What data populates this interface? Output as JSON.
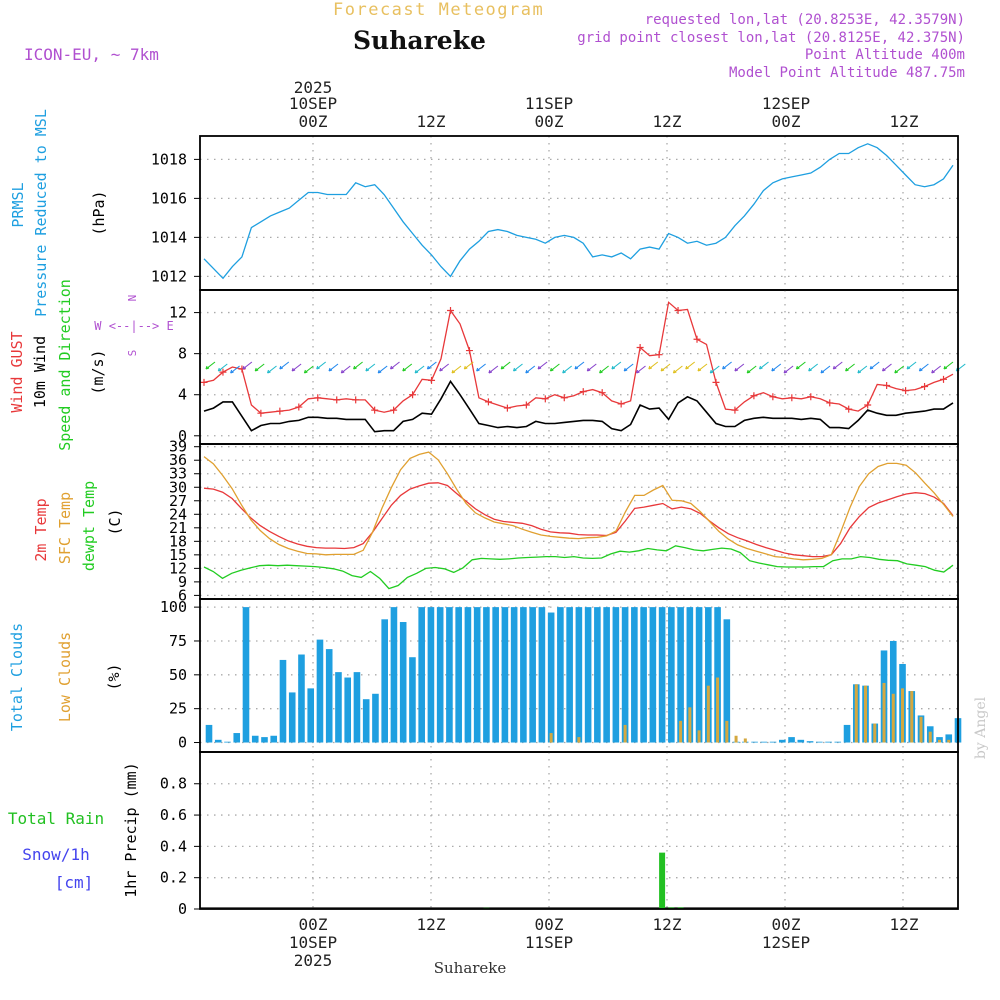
{
  "header": {
    "title": "Forecast Meteogram",
    "location": "Suhareke",
    "model": "ICON-EU, ~ 7km",
    "requested": "requested lon,lat (20.8253E, 42.3579N)",
    "gridpoint": "grid point closest lon,lat (20.8125E, 42.375N)",
    "point_alt": "Point Altitude 400m",
    "model_alt": "Model Point Altitude 487.75m"
  },
  "footer": {
    "location": "Suhareke",
    "watermark": "by Angel"
  },
  "time_axis": {
    "year": "2025",
    "top_labels": [
      "10SEP",
      "00Z",
      "12Z",
      "11SEP",
      "00Z",
      "12Z",
      "12SEP",
      "00Z",
      "12Z"
    ],
    "bottom_labels": [
      "00Z",
      "12Z",
      "00Z",
      "12Z",
      "00Z",
      "12Z",
      "10SEP",
      "11SEP",
      "12SEP"
    ]
  },
  "colors": {
    "pressure": "#1e9fe0",
    "gust": "#e8383a",
    "wind": "#000000",
    "temp2m": "#e8383a",
    "sfc": "#e0a030",
    "dewpt": "#22cc22",
    "total_cloud": "#1e9fe0",
    "low_cloud": "#d4a840",
    "rain": "#22c022",
    "snow": "#4444ee",
    "meta": "#b050d0",
    "title_gold": "#e8c060"
  },
  "chart_data": [
    {
      "type": "line",
      "title": "PRMSL",
      "ylabel_lines": [
        "PRMSL",
        "Pressure Reduced to MSL",
        "(hPa)"
      ],
      "yticks": [
        1012,
        1014,
        1016,
        1018
      ],
      "ylim": [
        1011.3,
        1019.2
      ],
      "series": [
        {
          "name": "PRMSL",
          "values": [
            1012.9,
            1012.4,
            1011.9,
            1012.5,
            1013.0,
            1014.5,
            1014.8,
            1015.1,
            1015.3,
            1015.5,
            1015.9,
            1016.3,
            1016.3,
            1016.2,
            1016.2,
            1016.2,
            1016.8,
            1016.6,
            1016.7,
            1016.2,
            1015.5,
            1014.8,
            1014.2,
            1013.6,
            1013.1,
            1012.5,
            1012.0,
            1012.8,
            1013.4,
            1013.8,
            1014.3,
            1014.4,
            1014.3,
            1014.1,
            1014.0,
            1013.9,
            1013.7,
            1014.0,
            1014.1,
            1014.0,
            1013.7,
            1013.0,
            1013.1,
            1013.0,
            1013.2,
            1012.9,
            1013.4,
            1013.5,
            1013.4,
            1014.2,
            1014.0,
            1013.7,
            1013.8,
            1013.6,
            1013.7,
            1014.0,
            1014.6,
            1015.1,
            1015.7,
            1016.4,
            1016.8,
            1017.0,
            1017.1,
            1017.2,
            1017.3,
            1017.6,
            1018.0,
            1018.3,
            1018.3,
            1018.6,
            1018.8,
            1018.6,
            1018.2,
            1017.7,
            1017.2,
            1016.7,
            1016.6,
            1016.7,
            1017.0,
            1017.7
          ]
        }
      ]
    },
    {
      "type": "line",
      "title": "Wind",
      "ylabel_lines": [
        "Wind GUST",
        "10m Wind",
        "Speed and Direction",
        "(m/s)"
      ],
      "compass": [
        "N",
        "W <--|--> E",
        "S"
      ],
      "yticks": [
        0,
        4,
        8,
        12
      ],
      "ylim": [
        -0.8,
        14.2
      ],
      "series": [
        {
          "name": "Wind GUST",
          "values": [
            5.2,
            5.4,
            6.2,
            6.7,
            6.5,
            3.0,
            2.2,
            2.3,
            2.4,
            2.5,
            2.8,
            3.6,
            3.7,
            3.6,
            3.5,
            3.6,
            3.5,
            3.5,
            2.5,
            2.3,
            2.5,
            3.4,
            4.0,
            5.5,
            5.4,
            7.5,
            12.2,
            10.9,
            8.3,
            3.7,
            3.3,
            3.0,
            2.7,
            2.9,
            3.0,
            3.7,
            3.6,
            4.0,
            3.7,
            3.9,
            4.3,
            4.5,
            4.2,
            3.4,
            3.1,
            3.4,
            8.6,
            7.8,
            7.9,
            13.0,
            12.2,
            12.3,
            9.4,
            8.9,
            5.2,
            2.6,
            2.5,
            3.3,
            3.9,
            4.2,
            3.8,
            3.6,
            3.7,
            3.6,
            3.8,
            3.6,
            3.2,
            3.1,
            2.6,
            2.4,
            3.0,
            5.0,
            4.9,
            4.6,
            4.4,
            4.5,
            4.8,
            5.2,
            5.5,
            6.0
          ]
        },
        {
          "name": "10m Wind",
          "values": [
            2.4,
            2.7,
            3.3,
            3.3,
            1.9,
            0.5,
            1.0,
            1.2,
            1.2,
            1.4,
            1.5,
            1.8,
            1.8,
            1.7,
            1.7,
            1.6,
            1.6,
            1.6,
            0.4,
            0.5,
            0.5,
            1.4,
            1.6,
            2.2,
            2.1,
            3.6,
            5.3,
            4.0,
            2.6,
            1.2,
            1.0,
            0.8,
            0.9,
            0.8,
            0.9,
            1.4,
            1.2,
            1.2,
            1.3,
            1.4,
            1.5,
            1.5,
            1.4,
            0.7,
            0.5,
            1.1,
            3.0,
            2.6,
            2.7,
            1.6,
            3.2,
            3.8,
            3.4,
            2.3,
            1.2,
            0.9,
            0.9,
            1.5,
            1.7,
            1.8,
            1.7,
            1.7,
            1.7,
            1.6,
            1.7,
            1.6,
            0.8,
            0.8,
            0.7,
            1.5,
            2.5,
            2.2,
            2.0,
            2.0,
            2.2,
            2.3,
            2.4,
            2.6,
            2.6,
            3.2
          ]
        }
      ]
    },
    {
      "type": "line",
      "title": "Temperature",
      "ylabel_lines": [
        "2m Temp",
        "SFC Temp",
        "dewpt Temp",
        "(C)"
      ],
      "yticks": [
        6,
        9,
        12,
        15,
        18,
        21,
        24,
        27,
        30,
        33,
        36,
        39
      ],
      "ylim": [
        5.2,
        39.6
      ],
      "series": [
        {
          "name": "2m Temp",
          "values": [
            29.8,
            29.6,
            28.9,
            27.5,
            25.3,
            23.2,
            21.5,
            20.2,
            19.1,
            18.1,
            17.4,
            16.9,
            16.6,
            16.5,
            16.5,
            16.4,
            16.6,
            17.5,
            20.0,
            23.0,
            26.0,
            28.2,
            29.6,
            30.3,
            30.9,
            31.0,
            30.4,
            28.6,
            26.9,
            25.2,
            23.9,
            22.9,
            22.4,
            22.2,
            22.0,
            21.5,
            20.7,
            20.1,
            19.9,
            19.8,
            19.5,
            19.4,
            19.4,
            19.3,
            20.0,
            22.5,
            25.3,
            25.6,
            26.0,
            26.4,
            25.2,
            25.6,
            25.2,
            24.2,
            22.5,
            21.0,
            19.7,
            18.8,
            18.1,
            17.3,
            16.6,
            16.0,
            15.4,
            15.0,
            14.8,
            14.6,
            14.6,
            15.0,
            17.5,
            21.0,
            23.5,
            25.5,
            26.5,
            27.2,
            27.9,
            28.5,
            28.8,
            28.6,
            27.8,
            26.4,
            23.7
          ]
        },
        {
          "name": "SFC Temp",
          "values": [
            36.8,
            35.2,
            32.6,
            29.7,
            26.1,
            22.8,
            20.4,
            18.6,
            17.3,
            16.4,
            15.8,
            15.3,
            15.2,
            15.0,
            15.1,
            15.1,
            15.1,
            16.0,
            20.0,
            25.3,
            29.9,
            33.9,
            36.4,
            37.3,
            37.8,
            36.1,
            33.0,
            29.5,
            26.4,
            24.3,
            23.2,
            22.3,
            21.9,
            21.5,
            20.7,
            20.0,
            19.4,
            19.1,
            18.9,
            18.7,
            18.6,
            18.8,
            18.9,
            19.2,
            20.3,
            24.5,
            28.2,
            28.2,
            29.4,
            30.4,
            27.1,
            27.0,
            26.4,
            24.6,
            22.4,
            20.2,
            18.5,
            17.2,
            16.4,
            15.8,
            15.2,
            14.6,
            14.4,
            14.1,
            13.9,
            14.0,
            14.2,
            15.0,
            20.0,
            25.5,
            30.2,
            33.0,
            34.6,
            35.3,
            35.3,
            34.9,
            33.2,
            30.9,
            28.7,
            26.2,
            23.5
          ]
        },
        {
          "name": "dewpt Temp",
          "values": [
            12.3,
            11.3,
            9.8,
            10.9,
            11.6,
            12.1,
            12.6,
            12.7,
            12.6,
            12.7,
            12.6,
            12.5,
            12.4,
            12.2,
            11.9,
            11.4,
            10.4,
            10.0,
            11.3,
            9.8,
            7.5,
            8.2,
            10.0,
            10.9,
            12.0,
            12.2,
            11.9,
            11.1,
            12.1,
            13.9,
            14.2,
            14.1,
            14.0,
            14.1,
            14.3,
            14.4,
            14.5,
            14.6,
            14.6,
            14.4,
            14.6,
            14.3,
            14.2,
            14.3,
            15.2,
            15.8,
            15.6,
            15.9,
            16.4,
            16.1,
            15.9,
            17.0,
            16.6,
            16.1,
            15.9,
            16.2,
            16.5,
            16.3,
            15.5,
            13.7,
            13.2,
            12.8,
            12.4,
            12.3,
            12.3,
            12.3,
            12.4,
            12.4,
            13.7,
            14.1,
            14.1,
            14.6,
            14.4,
            14.0,
            13.8,
            13.7,
            13.0,
            12.7,
            12.4,
            11.6,
            11.2,
            12.7
          ]
        }
      ]
    },
    {
      "type": "bar",
      "title": "Clouds",
      "ylabel_lines": [
        "Total Clouds",
        "Low Clouds",
        "(%)"
      ],
      "yticks": [
        0,
        25,
        50,
        75,
        100
      ],
      "ylim": [
        -7,
        106
      ],
      "series": [
        {
          "name": "Total Clouds",
          "values": [
            13,
            2,
            0,
            7,
            100,
            5,
            4,
            5,
            61,
            37,
            65,
            40,
            76,
            69,
            52,
            48,
            52,
            32,
            36,
            91,
            100,
            89,
            63,
            100,
            100,
            100,
            100,
            100,
            100,
            100,
            100,
            100,
            100,
            100,
            100,
            100,
            100,
            96,
            100,
            100,
            100,
            100,
            100,
            100,
            100,
            100,
            100,
            100,
            100,
            100,
            100,
            100,
            100,
            100,
            100,
            100,
            91,
            0,
            0,
            0,
            0,
            0,
            2,
            4,
            2,
            1,
            0,
            0,
            0,
            13,
            43,
            42,
            14,
            68,
            75,
            58,
            38,
            20,
            12,
            4,
            6,
            18
          ]
        },
        {
          "name": "Low Clouds",
          "values": [
            0,
            0,
            0,
            0,
            0,
            0,
            0,
            0,
            0,
            0,
            0,
            0,
            0,
            0,
            0,
            0,
            0,
            0,
            0,
            0,
            0,
            0,
            0,
            0,
            0,
            0,
            0,
            0,
            0,
            0,
            0,
            0,
            0,
            0,
            0,
            0,
            0,
            7,
            0,
            0,
            4,
            0,
            0,
            0,
            0,
            13,
            0,
            0,
            0,
            0,
            0,
            16,
            26,
            9,
            42,
            48,
            16,
            5,
            3,
            0,
            0,
            0,
            0,
            0,
            0,
            0,
            0,
            0,
            0,
            0,
            43,
            42,
            14,
            44,
            36,
            40,
            38,
            19,
            8,
            2,
            2,
            0
          ]
        }
      ]
    },
    {
      "type": "bar",
      "title": "Precipitation",
      "ylabel_lines": [
        "Total Rain",
        "Snow/1h",
        "[cm]",
        "1hr Precip (mm)"
      ],
      "yticks": [
        0,
        0.2,
        0.4,
        0.6,
        0.8
      ],
      "ylabels": [
        "0",
        "0.2",
        "0.4",
        "0.6",
        "0.8"
      ],
      "ylim": [
        0,
        0.99
      ],
      "series": [
        {
          "name": "Total Rain",
          "values": [
            0,
            0,
            0,
            0,
            0,
            0,
            0,
            0,
            0,
            0,
            0,
            0,
            0,
            0,
            0,
            0,
            0,
            0,
            0,
            0,
            0,
            0,
            0,
            0,
            0,
            0,
            0,
            0,
            0,
            0,
            0.005,
            0,
            0,
            0,
            0,
            0,
            0,
            0,
            0,
            0,
            0,
            0,
            0,
            0,
            0,
            0,
            0,
            0,
            0,
            0.36,
            0.01,
            0.01,
            0,
            0,
            0,
            0,
            0,
            0,
            0,
            0,
            0,
            0,
            0,
            0,
            0,
            0,
            0,
            0,
            0,
            0,
            0,
            0,
            0,
            0,
            0,
            0,
            0,
            0,
            0,
            0,
            0,
            0
          ]
        }
      ]
    }
  ]
}
